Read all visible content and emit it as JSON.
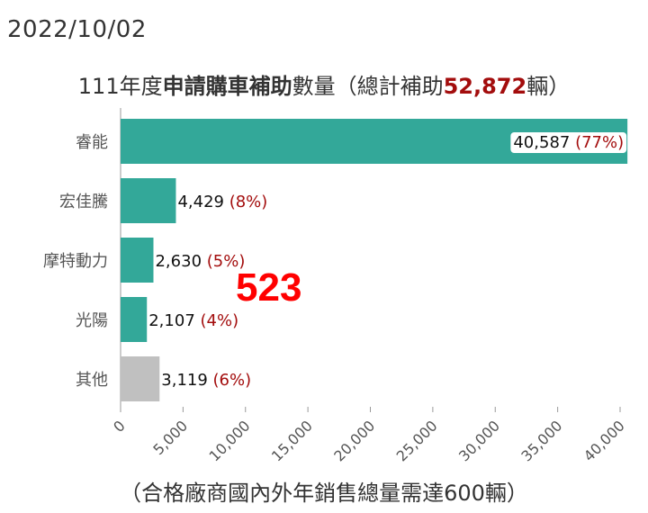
{
  "date": "2022/10/02",
  "title": {
    "prefix": "111年度",
    "bold": "申請購車補助",
    "middle": "數量（總計補助",
    "total": "52,872",
    "suffix": "輛）"
  },
  "stamp": "523",
  "footnote": "（合格廠商國內外年銷售總量需達600輛）",
  "colors": {
    "bar": "#33a899",
    "other": "#c0c0c0",
    "pct": "#a30d0d"
  },
  "chart_data": {
    "type": "bar",
    "orientation": "horizontal",
    "categories": [
      "睿能",
      "宏佳騰",
      "摩特動力",
      "光陽",
      "其他"
    ],
    "values": [
      40587,
      4429,
      2630,
      2107,
      3119
    ],
    "value_labels": [
      "40,587",
      "4,429",
      "2,630",
      "2,107",
      "3,119"
    ],
    "percent_labels": [
      "(77%)",
      "(8%)",
      "(5%)",
      "(4%)",
      "(6%)"
    ],
    "xlim": [
      0,
      40000
    ],
    "xticks": [
      0,
      5000,
      10000,
      15000,
      20000,
      25000,
      30000,
      35000,
      40000
    ],
    "xtick_labels": [
      "0",
      "5,000",
      "10,000",
      "15,000",
      "20,000",
      "25,000",
      "30,000",
      "35,000",
      "40,000"
    ],
    "grid": false,
    "legend": "none"
  }
}
